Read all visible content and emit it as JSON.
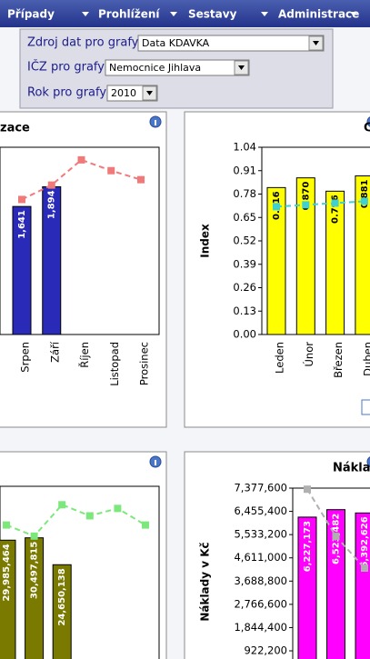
{
  "menu": [
    "Případy",
    "Prohlížení",
    "Sestavy",
    "Administrace"
  ],
  "filters": [
    {
      "label": "Zdroj dat pro grafy",
      "value": "Data KDAVKA"
    },
    {
      "label": "IČZ pro grafy",
      "value": "Nemocnice Jihlava"
    },
    {
      "label": "Rok pro grafy",
      "value": "2010"
    }
  ],
  "charts": [
    {
      "type": "bar",
      "title": "zace",
      "categories": [
        "Srpen",
        "Září",
        "Říjen",
        "Listopad",
        "Prosinec"
      ],
      "ylim": [
        0,
        2400
      ],
      "y2lim": [
        0,
        1.04
      ],
      "series": [
        {
          "type": "bar",
          "color": "#2a2ab8",
          "values": [
            1641,
            1894,
            null,
            null,
            null
          ],
          "value_labels": [
            "1,641",
            "1,894",
            null,
            null,
            null
          ]
        },
        {
          "type": "line",
          "axis": "y2",
          "color": "#f07a7a",
          "values": [
            0.75,
            0.83,
            0.97,
            0.91,
            0.86
          ]
        }
      ]
    },
    {
      "type": "bar",
      "title": "C",
      "y_label": "Index",
      "categories": [
        "Leden",
        "Únor",
        "Březen",
        "Duben"
      ],
      "ylim": [
        0,
        1.04
      ],
      "yticks": [
        {
          "value": 0,
          "label": "0.00"
        },
        0.13,
        0.26,
        0.39,
        0.52,
        0.65,
        0.78,
        0.91,
        1.04
      ],
      "series": [
        {
          "type": "bar",
          "color": "#ffff00",
          "values": [
            0.816,
            0.87,
            0.796,
            0.881
          ],
          "value_labels": [
            "0.816",
            "0.870",
            "0.796",
            "0.881"
          ]
        },
        {
          "type": "line",
          "color": "#40d0d0",
          "values": [
            0.71,
            0.72,
            0.73,
            0.74
          ]
        }
      ]
    },
    {
      "type": "bar",
      "categories": [
        null,
        null,
        null,
        null,
        null,
        null
      ],
      "ylim": [
        0,
        41700000
      ],
      "y2lim": [
        0,
        1.04
      ],
      "series": [
        {
          "type": "bar",
          "color": "#7a7a00",
          "values": [
            29985464,
            30497815,
            24650138,
            null,
            null,
            null
          ],
          "value_labels": [
            "29,985,464",
            "30,497,815",
            "24,650,138",
            null,
            null,
            null
          ]
        },
        {
          "type": "line",
          "axis": "y2",
          "color": "#7ce87c",
          "values": [
            0.83,
            0.77,
            0.94,
            0.88,
            0.92,
            0.83
          ]
        }
      ]
    },
    {
      "type": "bar",
      "title": "Nákla",
      "y_label": "Náklady v Kč",
      "categories": [
        null,
        null,
        null
      ],
      "ylim": [
        0,
        7377600
      ],
      "yticks": [
        {
          "value": 922200,
          "label": "922,200"
        },
        {
          "value": 1844400,
          "label": "1,844,400"
        },
        {
          "value": 2766600,
          "label": "2,766,600"
        },
        {
          "value": 3688800,
          "label": "3,688,800"
        },
        {
          "value": 4611000,
          "label": "4,611,000"
        },
        {
          "value": 5533200,
          "label": "5,533,200"
        },
        {
          "value": 6455400,
          "label": "6,455,400"
        },
        {
          "value": 7377600,
          "label": "7,377,600"
        }
      ],
      "series": [
        {
          "type": "bar",
          "color": "#ff00ff",
          "values": [
            6227173,
            6523482,
            6392626
          ],
          "value_labels": [
            "6,227,173",
            "6,523,482",
            "6,392,626"
          ]
        },
        {
          "type": "line",
          "color": "#b0b0b0",
          "values": [
            7334000,
            5465000,
            4204000
          ]
        }
      ]
    }
  ]
}
